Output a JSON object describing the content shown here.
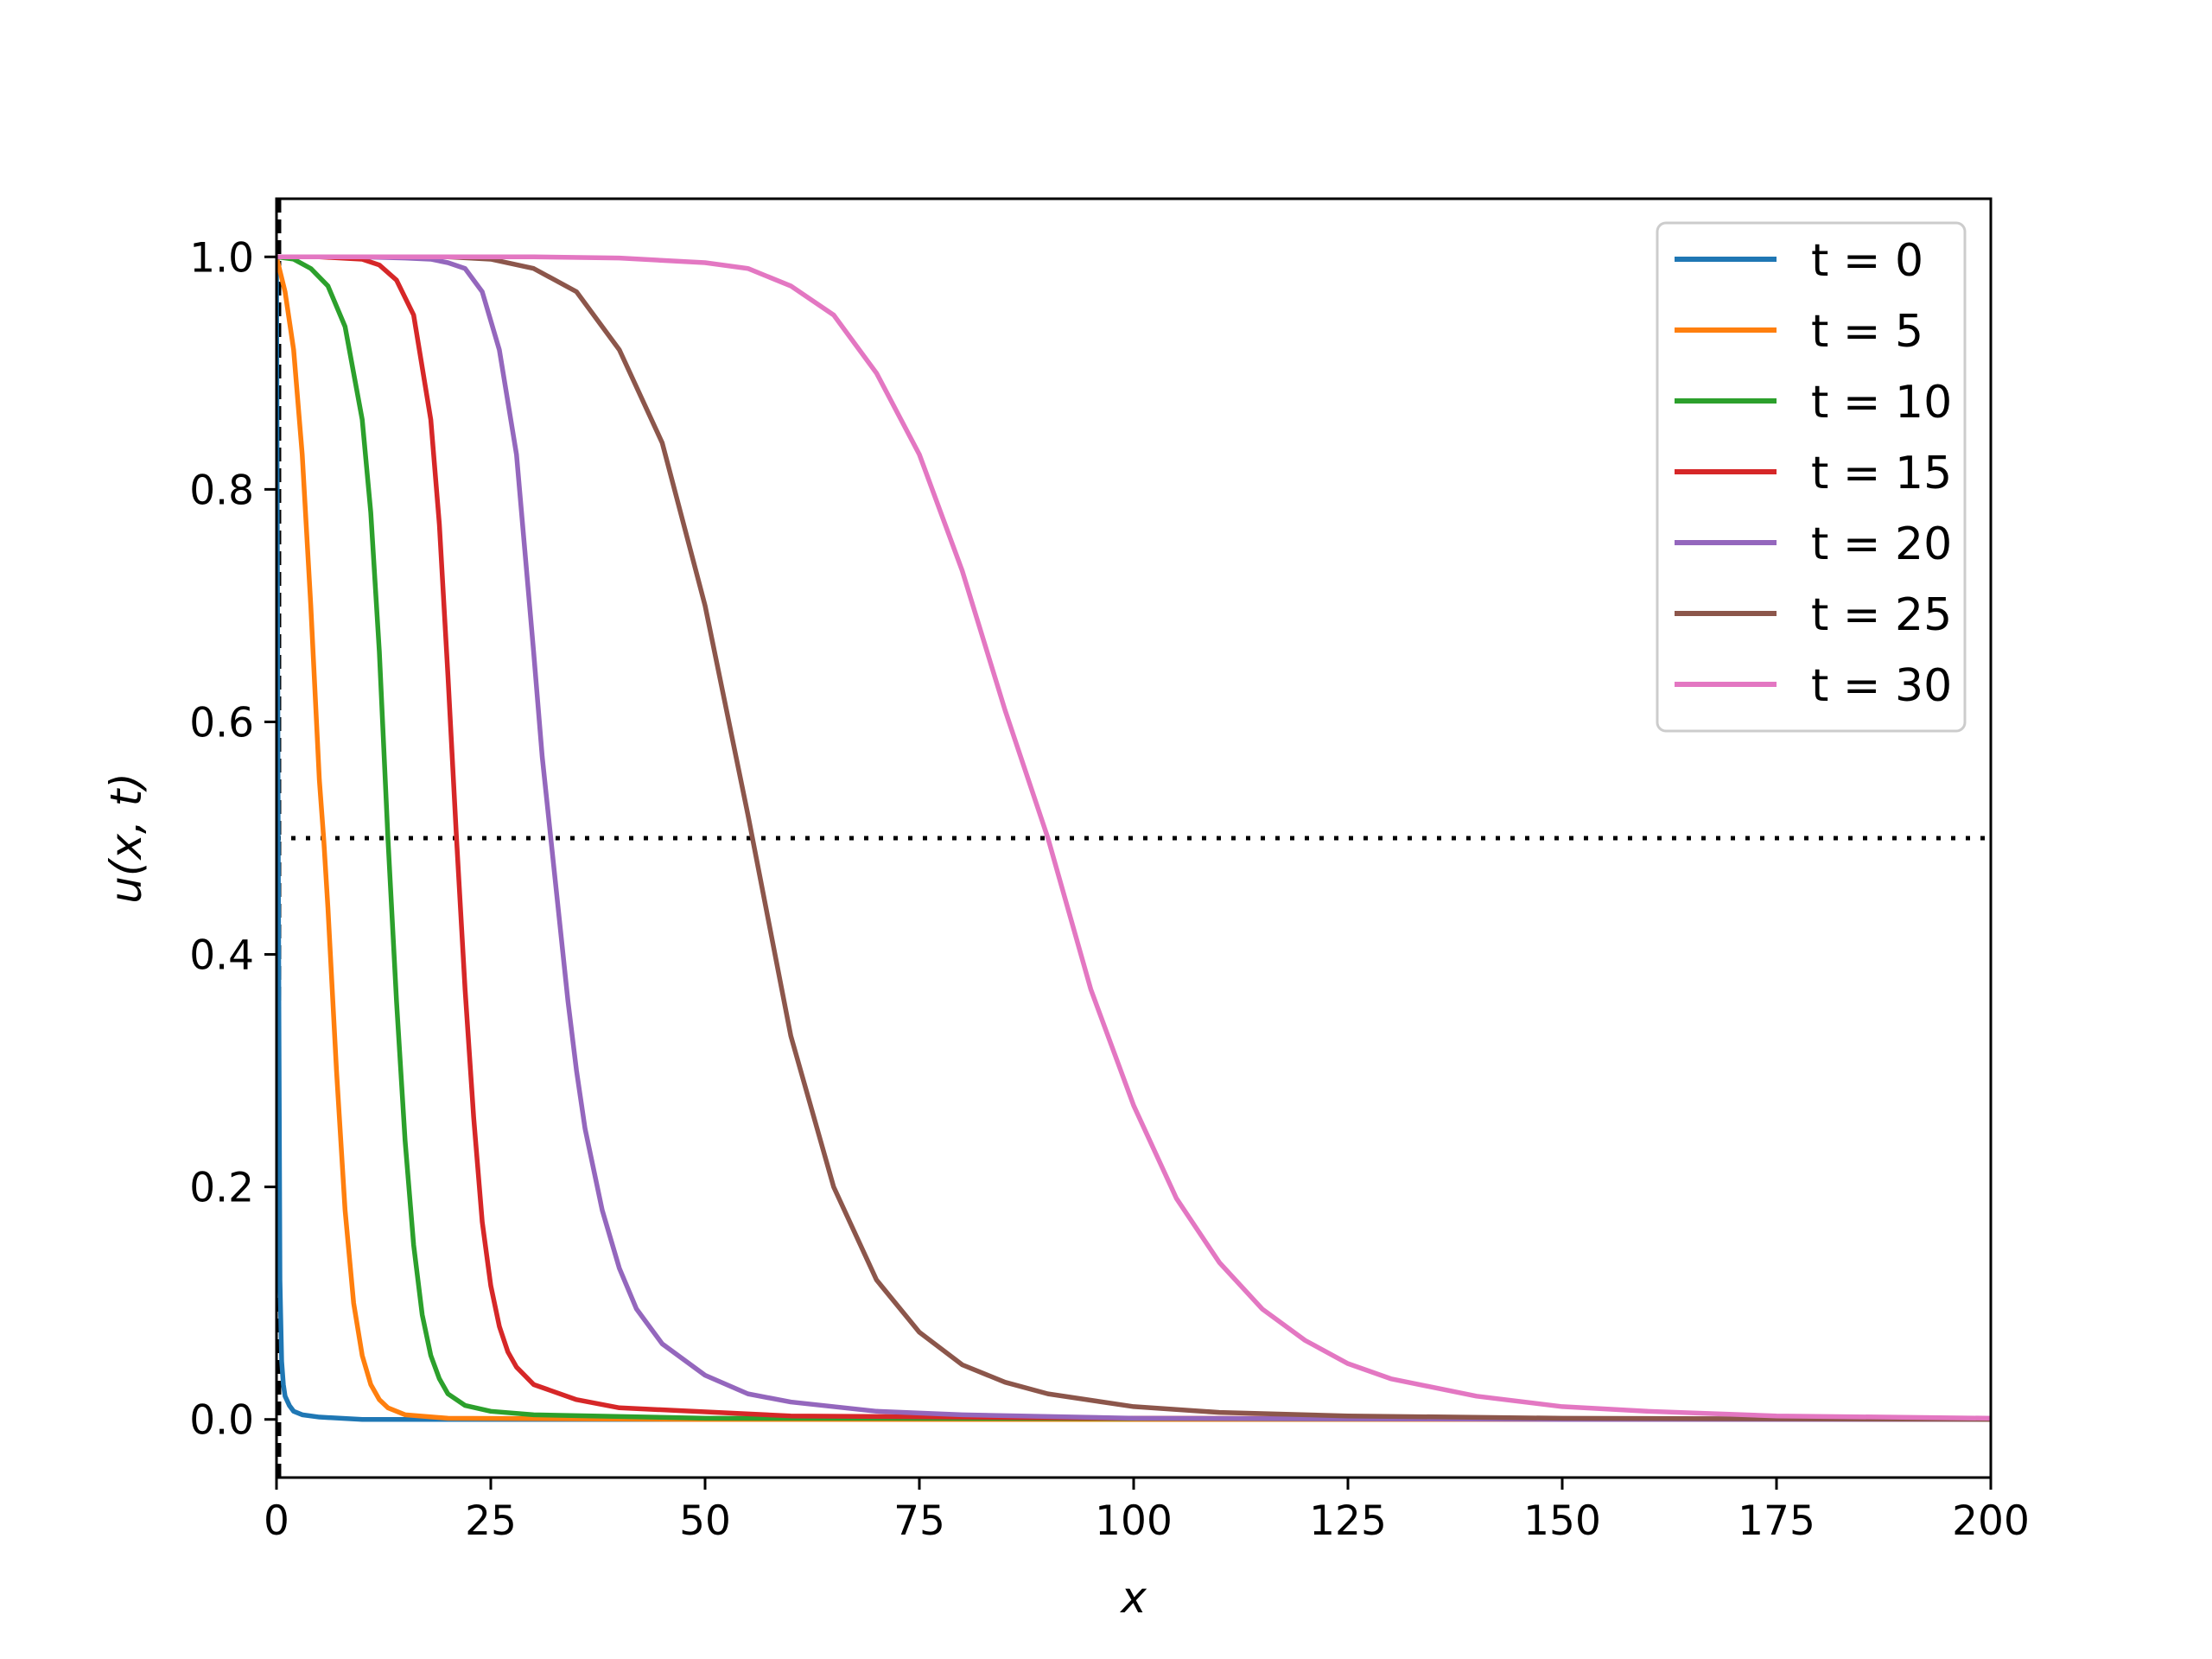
{
  "chart_data": {
    "type": "line",
    "title": "",
    "xlabel": "x",
    "ylabel": "u(x, t)",
    "xlim": [
      0,
      200
    ],
    "ylim": [
      -0.05,
      1.05
    ],
    "xticks": [
      0,
      25,
      50,
      75,
      100,
      125,
      150,
      175,
      200
    ],
    "xtick_labels": [
      "0",
      "25",
      "50",
      "75",
      "100",
      "125",
      "150",
      "175",
      "200"
    ],
    "yticks": [
      0.0,
      0.2,
      0.4,
      0.6,
      0.8,
      1.0
    ],
    "ytick_labels": [
      "0.0",
      "0.2",
      "0.4",
      "0.6",
      "0.8",
      "1.0"
    ],
    "grid": false,
    "legend_position": "top-right",
    "reference_lines": [
      {
        "orientation": "horizontal",
        "value": 0.5,
        "style": "dotted",
        "color": "#000000"
      },
      {
        "orientation": "vertical",
        "value": 0.3,
        "style": "dashed",
        "color": "#000000"
      }
    ],
    "series": [
      {
        "name": "t = 0",
        "color": "#1f77b4",
        "x": [
          0,
          0.2,
          0.4,
          0.6,
          0.8,
          1.0,
          1.5,
          2.0,
          3.0,
          5.0,
          10,
          50,
          200
        ],
        "y": [
          1.0,
          0.5,
          0.12,
          0.05,
          0.03,
          0.02,
          0.012,
          0.007,
          0.004,
          0.002,
          0.0,
          0.0,
          0.0
        ]
      },
      {
        "name": "t = 5",
        "color": "#ff7f0e",
        "x": [
          0,
          1,
          2,
          3,
          4,
          5,
          5.5,
          6,
          7,
          8,
          9,
          10,
          11,
          12,
          13,
          15,
          20,
          50,
          200
        ],
        "y": [
          1.0,
          0.97,
          0.92,
          0.83,
          0.7,
          0.55,
          0.5,
          0.44,
          0.3,
          0.18,
          0.1,
          0.055,
          0.03,
          0.017,
          0.01,
          0.004,
          0.001,
          0.0,
          0.0
        ]
      },
      {
        "name": "t = 10",
        "color": "#2ca02c",
        "x": [
          0,
          2,
          4,
          6,
          8,
          10,
          11,
          12,
          13,
          14,
          15,
          16,
          17,
          18,
          19,
          20,
          22,
          25,
          30,
          50,
          200
        ],
        "y": [
          1.0,
          0.998,
          0.99,
          0.975,
          0.94,
          0.86,
          0.78,
          0.66,
          0.5,
          0.36,
          0.24,
          0.15,
          0.09,
          0.055,
          0.035,
          0.022,
          0.012,
          0.007,
          0.004,
          0.001,
          0.0
        ]
      },
      {
        "name": "t = 15",
        "color": "#d62728",
        "x": [
          0,
          5,
          10,
          12,
          14,
          16,
          18,
          19,
          20,
          21,
          22,
          23,
          24,
          25,
          26,
          27,
          28,
          30,
          35,
          40,
          60,
          100,
          200
        ],
        "y": [
          1.0,
          1.0,
          0.998,
          0.993,
          0.98,
          0.95,
          0.86,
          0.77,
          0.64,
          0.5,
          0.37,
          0.26,
          0.17,
          0.115,
          0.08,
          0.058,
          0.045,
          0.03,
          0.017,
          0.01,
          0.003,
          0.001,
          0.0
        ]
      },
      {
        "name": "t = 20",
        "color": "#9467bd",
        "x": [
          0,
          10,
          15,
          18,
          20,
          22,
          24,
          26,
          28,
          30,
          31,
          32,
          33,
          34,
          35,
          36,
          38,
          40,
          42,
          45,
          50,
          55,
          60,
          70,
          80,
          100,
          150,
          200
        ],
        "y": [
          1.0,
          1.0,
          0.999,
          0.998,
          0.995,
          0.99,
          0.97,
          0.92,
          0.83,
          0.66,
          0.57,
          0.5,
          0.43,
          0.36,
          0.3,
          0.25,
          0.18,
          0.13,
          0.095,
          0.065,
          0.038,
          0.022,
          0.015,
          0.007,
          0.004,
          0.001,
          0.0,
          0.0
        ]
      },
      {
        "name": "t = 25",
        "color": "#8c564b",
        "x": [
          0,
          20,
          25,
          30,
          35,
          40,
          45,
          50,
          55,
          60,
          65,
          70,
          75,
          80,
          85,
          90,
          100,
          110,
          125,
          150,
          200
        ],
        "y": [
          1.0,
          1.0,
          0.998,
          0.99,
          0.97,
          0.92,
          0.84,
          0.7,
          0.52,
          0.33,
          0.2,
          0.12,
          0.075,
          0.047,
          0.032,
          0.022,
          0.011,
          0.006,
          0.003,
          0.001,
          0.0
        ]
      },
      {
        "name": "t = 30",
        "color": "#e377c2",
        "x": [
          0,
          30,
          40,
          50,
          55,
          60,
          65,
          70,
          75,
          80,
          85,
          90,
          95,
          100,
          105,
          110,
          115,
          120,
          125,
          130,
          140,
          150,
          160,
          175,
          200
        ],
        "y": [
          1.0,
          1.0,
          0.999,
          0.995,
          0.99,
          0.975,
          0.95,
          0.9,
          0.83,
          0.73,
          0.61,
          0.5,
          0.37,
          0.27,
          0.19,
          0.135,
          0.095,
          0.068,
          0.048,
          0.035,
          0.02,
          0.011,
          0.007,
          0.003,
          0.001
        ]
      }
    ]
  }
}
